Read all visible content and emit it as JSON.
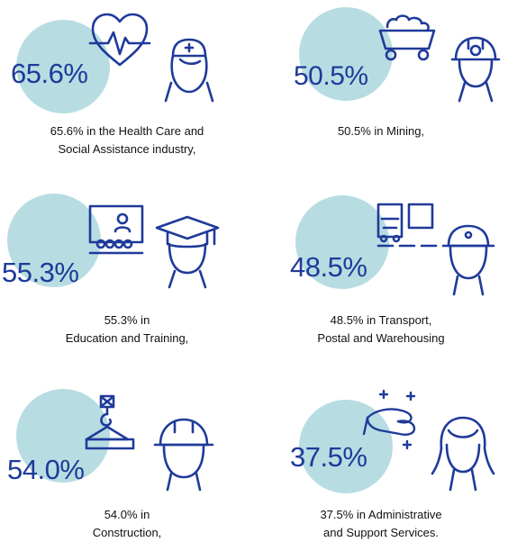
{
  "accent_color": "#1f3a9a",
  "blob_color": "#b7dde2",
  "items": [
    {
      "percent": "65.6%",
      "caption_line1": "65.6% in the Health Care and",
      "caption_line2": "Social Assistance industry,",
      "icons": [
        "heart-rate-icon",
        "nurse-icon"
      ]
    },
    {
      "percent": "50.5%",
      "caption_line1": "50.5% in Mining,",
      "caption_line2": "",
      "icons": [
        "mine-cart-icon",
        "miner-icon"
      ]
    },
    {
      "percent": "55.3%",
      "caption_line1": "55.3% in",
      "caption_line2": "Education and Training,",
      "icons": [
        "classroom-icon",
        "graduate-icon"
      ]
    },
    {
      "percent": "48.5%",
      "caption_line1": "48.5% in Transport,",
      "caption_line2": "Postal and Warehousing",
      "icons": [
        "truck-icon",
        "delivery-worker-icon"
      ]
    },
    {
      "percent": "54.0%",
      "caption_line1": "54.0% in",
      "caption_line2": "Construction,",
      "icons": [
        "crane-hook-icon",
        "construction-worker-icon"
      ]
    },
    {
      "percent": "37.5%",
      "caption_line1": "37.5% in Administrative",
      "caption_line2": "and Support Services.",
      "icons": [
        "cleaning-hand-icon",
        "admin-worker-icon"
      ]
    }
  ]
}
